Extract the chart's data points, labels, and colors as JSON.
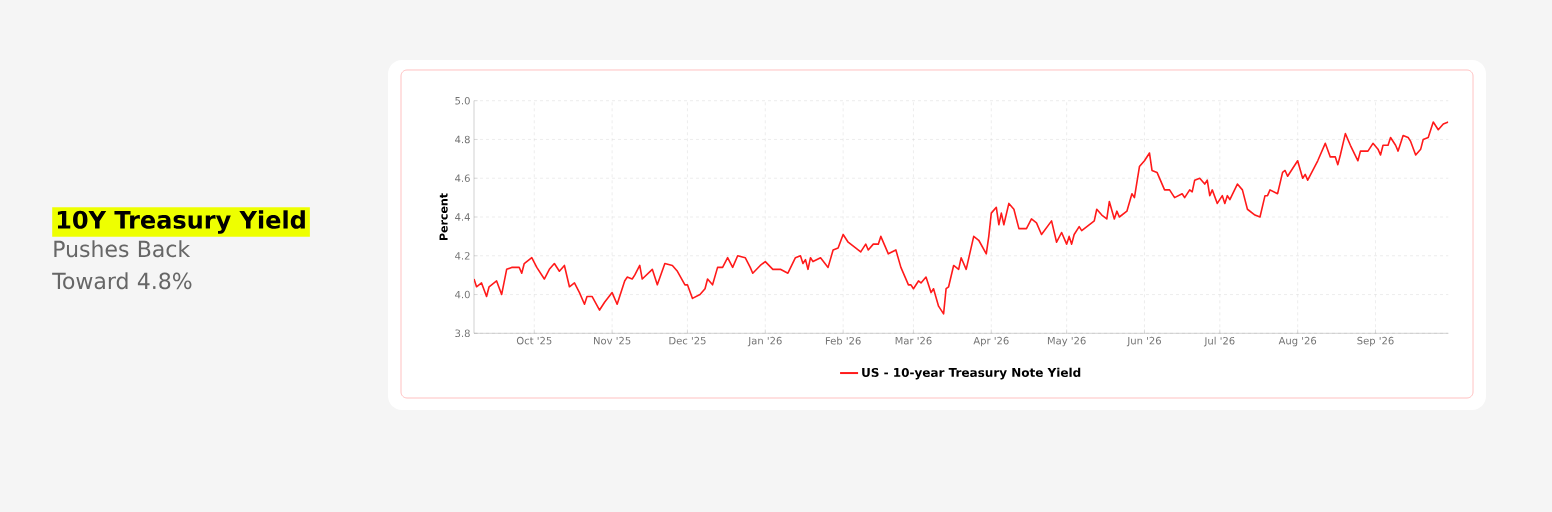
{
  "chart_data": {
    "type": "line",
    "title": "10Y Treasury Yield",
    "subtitle": "Pushes Back Toward 4.8%",
    "ylabel": "Percent",
    "xlim": [
      "2025-09-07",
      "2026-09-30"
    ],
    "xticks": [
      {
        "value": "2025-10-01",
        "label": "Oct '25"
      },
      {
        "value": "2025-11-01",
        "label": "Nov '25"
      },
      {
        "value": "2025-12-01",
        "label": "Dec '25"
      },
      {
        "value": "2026-01-01",
        "label": "Jan '26"
      },
      {
        "value": "2026-02-01",
        "label": "Feb '26"
      },
      {
        "value": "2026-03-01",
        "label": "Mar '26"
      },
      {
        "value": "2026-04-01",
        "label": "Apr '26"
      },
      {
        "value": "2026-05-01",
        "label": "May '26"
      },
      {
        "value": "2026-06-01",
        "label": "Jun '26"
      },
      {
        "value": "2026-07-01",
        "label": "Jul '26"
      },
      {
        "value": "2026-08-01",
        "label": "Aug '26"
      },
      {
        "value": "2026-09-01",
        "label": "Sep '26"
      }
    ],
    "ylim": [
      3.8,
      5.0
    ],
    "yticks": [
      3.8,
      {
        "value": 4.0,
        "label": "4.0"
      },
      4.2,
      4.4,
      4.6,
      4.8,
      {
        "value": 5.0,
        "label": "5.0"
      }
    ],
    "grid": true,
    "legend": "bottom",
    "x": [
      "2025-09-07",
      "2025-09-08",
      "2025-09-10",
      "2025-09-12",
      "2025-09-13",
      "2025-09-16",
      "2025-09-18",
      "2025-09-20",
      "2025-09-22",
      "2025-09-25",
      "2025-09-26",
      "2025-09-27",
      "2025-09-30",
      "2025-10-02",
      "2025-10-05",
      "2025-10-07",
      "2025-10-09",
      "2025-10-11",
      "2025-10-13",
      "2025-10-15",
      "2025-10-17",
      "2025-10-19",
      "2025-10-21",
      "2025-10-22",
      "2025-10-24",
      "2025-10-27",
      "2025-10-29",
      "2025-11-01",
      "2025-11-03",
      "2025-11-06",
      "2025-11-07",
      "2025-11-09",
      "2025-11-10",
      "2025-11-12",
      "2025-11-13",
      "2025-11-17",
      "2025-11-19",
      "2025-11-22",
      "2025-11-25",
      "2025-11-27",
      "2025-11-30",
      "2025-12-01",
      "2025-12-03",
      "2025-12-06",
      "2025-12-08",
      "2025-12-09",
      "2025-12-11",
      "2025-12-13",
      "2025-12-15",
      "2025-12-17",
      "2025-12-19",
      "2025-12-21",
      "2025-12-24",
      "2025-12-26",
      "2025-12-27",
      "2025-12-30",
      "2026-01-01",
      "2026-01-04",
      "2026-01-07",
      "2026-01-10",
      "2026-01-13",
      "2026-01-15",
      "2026-01-16",
      "2026-01-17",
      "2026-01-18",
      "2026-01-19",
      "2026-01-20",
      "2026-01-23",
      "2026-01-26",
      "2026-01-28",
      "2026-01-30",
      "2026-02-01",
      "2026-02-03",
      "2026-02-08",
      "2026-02-10",
      "2026-02-11",
      "2026-02-13",
      "2026-02-15",
      "2026-02-16",
      "2026-02-19",
      "2026-02-22",
      "2026-02-24",
      "2026-02-27",
      "2026-02-28",
      "2026-03-01",
      "2026-03-03",
      "2026-03-04",
      "2026-03-06",
      "2026-03-08",
      "2026-03-09",
      "2026-03-11",
      "2026-03-13",
      "2026-03-14",
      "2026-03-15",
      "2026-03-17",
      "2026-03-19",
      "2026-03-20",
      "2026-03-22",
      "2026-03-25",
      "2026-03-27",
      "2026-03-30",
      "2026-03-31",
      "2026-04-01",
      "2026-04-03",
      "2026-04-04",
      "2026-04-05",
      "2026-04-06",
      "2026-04-08",
      "2026-04-10",
      "2026-04-12",
      "2026-04-15",
      "2026-04-17",
      "2026-04-19",
      "2026-04-21",
      "2026-04-25",
      "2026-04-27",
      "2026-04-29",
      "2026-05-01",
      "2026-05-02",
      "2026-05-03",
      "2026-05-04",
      "2026-05-06",
      "2026-05-07",
      "2026-05-11",
      "2026-05-12",
      "2026-05-13",
      "2026-05-15",
      "2026-05-17",
      "2026-05-18",
      "2026-05-20",
      "2026-05-21",
      "2026-05-22",
      "2026-05-25",
      "2026-05-27",
      "2026-05-28",
      "2026-05-30",
      "2026-06-01",
      "2026-06-03",
      "2026-06-04",
      "2026-06-06",
      "2026-06-09",
      "2026-06-11",
      "2026-06-13",
      "2026-06-16",
      "2026-06-17",
      "2026-06-19",
      "2026-06-20",
      "2026-06-21",
      "2026-06-23",
      "2026-06-25",
      "2026-06-26",
      "2026-06-27",
      "2026-06-28",
      "2026-06-30",
      "2026-07-02",
      "2026-07-03",
      "2026-07-04",
      "2026-07-05",
      "2026-07-08",
      "2026-07-10",
      "2026-07-12",
      "2026-07-15",
      "2026-07-17",
      "2026-07-19",
      "2026-07-20",
      "2026-07-21",
      "2026-07-24",
      "2026-07-26",
      "2026-07-27",
      "2026-07-28",
      "2026-07-30",
      "2026-08-01",
      "2026-08-03",
      "2026-08-04",
      "2026-08-05",
      "2026-08-09",
      "2026-08-12",
      "2026-08-14",
      "2026-08-16",
      "2026-08-17",
      "2026-08-18",
      "2026-08-20",
      "2026-08-22",
      "2026-08-25",
      "2026-08-26",
      "2026-08-27",
      "2026-08-29",
      "2026-08-31",
      "2026-09-02",
      "2026-09-03",
      "2026-09-04",
      "2026-09-06",
      "2026-09-07",
      "2026-09-09",
      "2026-09-10",
      "2026-09-12",
      "2026-09-14",
      "2026-09-15",
      "2026-09-17",
      "2026-09-19",
      "2026-09-20",
      "2026-09-22",
      "2026-09-24",
      "2026-09-26",
      "2026-09-28",
      "2026-09-30"
    ],
    "series": [
      {
        "name": "US - 10-year Treasury Note Yield",
        "color": "#ff1a1a",
        "values": [
          4.08,
          4.04,
          4.06,
          3.99,
          4.04,
          4.07,
          4.0,
          4.13,
          4.14,
          4.14,
          4.11,
          4.16,
          4.19,
          4.14,
          4.08,
          4.13,
          4.16,
          4.12,
          4.15,
          4.04,
          4.06,
          4.01,
          3.95,
          3.99,
          3.99,
          3.92,
          3.96,
          4.01,
          3.95,
          4.07,
          4.09,
          4.08,
          4.1,
          4.15,
          4.08,
          4.13,
          4.05,
          4.16,
          4.15,
          4.12,
          4.05,
          4.05,
          3.98,
          4.0,
          4.03,
          4.08,
          4.05,
          4.14,
          4.14,
          4.19,
          4.14,
          4.2,
          4.19,
          4.14,
          4.11,
          4.15,
          4.17,
          4.13,
          4.13,
          4.11,
          4.19,
          4.2,
          4.16,
          4.18,
          4.13,
          4.19,
          4.17,
          4.19,
          4.14,
          4.23,
          4.24,
          4.31,
          4.27,
          4.22,
          4.26,
          4.23,
          4.26,
          4.26,
          4.3,
          4.21,
          4.23,
          4.14,
          4.05,
          4.05,
          4.03,
          4.07,
          4.06,
          4.09,
          4.01,
          4.03,
          3.94,
          3.9,
          4.03,
          4.04,
          4.15,
          4.13,
          4.19,
          4.13,
          4.3,
          4.28,
          4.21,
          4.3,
          4.42,
          4.45,
          4.36,
          4.42,
          4.36,
          4.47,
          4.44,
          4.34,
          4.34,
          4.39,
          4.37,
          4.31,
          4.38,
          4.27,
          4.32,
          4.26,
          4.3,
          4.26,
          4.31,
          4.35,
          4.33,
          4.37,
          4.38,
          4.44,
          4.41,
          4.39,
          4.48,
          4.39,
          4.43,
          4.4,
          4.43,
          4.52,
          4.5,
          4.66,
          4.69,
          4.73,
          4.64,
          4.63,
          4.54,
          4.54,
          4.5,
          4.52,
          4.5,
          4.54,
          4.53,
          4.59,
          4.6,
          4.57,
          4.59,
          4.51,
          4.54,
          4.47,
          4.51,
          4.47,
          4.51,
          4.49,
          4.57,
          4.54,
          4.44,
          4.41,
          4.4,
          4.51,
          4.51,
          4.54,
          4.52,
          4.63,
          4.64,
          4.61,
          4.65,
          4.69,
          4.6,
          4.62,
          4.59,
          4.69,
          4.78,
          4.71,
          4.71,
          4.67,
          4.72,
          4.83,
          4.77,
          4.69,
          4.74,
          4.74,
          4.74,
          4.78,
          4.75,
          4.72,
          4.77,
          4.77,
          4.81,
          4.77,
          4.74,
          4.82,
          4.81,
          4.79,
          4.72,
          4.75,
          4.8,
          4.81,
          4.89,
          4.85,
          4.88,
          4.89
        ]
      }
    ]
  }
}
